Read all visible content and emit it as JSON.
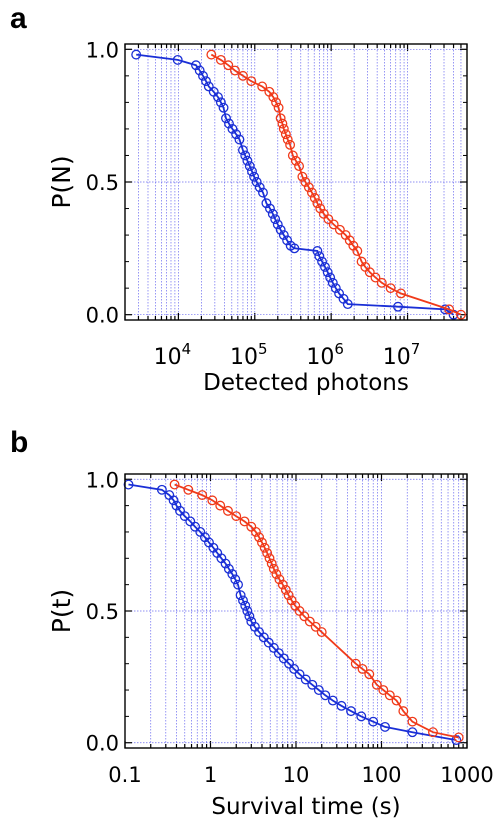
{
  "panels": [
    {
      "letter": "a"
    },
    {
      "letter": "b"
    }
  ],
  "chart_data": [
    {
      "type": "line",
      "xscale": "log",
      "xlabel": "Detected photons",
      "ylabel": "P(N)",
      "xlim": [
        2000,
        60000000
      ],
      "ylim": [
        -0.02,
        1.02
      ],
      "grid": true,
      "x_tick_labels": [
        {
          "value": 10000,
          "base": "10",
          "exp": "4"
        },
        {
          "value": 100000,
          "base": "10",
          "exp": "5"
        },
        {
          "value": 1000000,
          "base": "10",
          "exp": "6"
        },
        {
          "value": 10000000,
          "base": "10",
          "exp": "7"
        }
      ],
      "y_ticks": [
        {
          "value": 0.0,
          "label": "0.0"
        },
        {
          "value": 0.5,
          "label": "0.5"
        },
        {
          "value": 1.0,
          "label": "1.0"
        }
      ],
      "series": [
        {
          "color": "#1a2fd6",
          "x": [
            2800,
            9800,
            17000,
            19000,
            21000,
            23000,
            25000,
            29000,
            33000,
            36000,
            39000,
            42000,
            46000,
            51000,
            57000,
            63000,
            70000,
            75000,
            80000,
            86000,
            92000,
            98000,
            106000,
            116000,
            128000,
            142000,
            158000,
            172000,
            185000,
            200000,
            218000,
            240000,
            265000,
            295000,
            330000,
            660000,
            700000,
            760000,
            830000,
            900000,
            970000,
            1050000,
            1150000,
            1270000,
            1450000,
            1650000,
            7500000,
            31000000,
            40000000
          ],
          "y": [
            0.98,
            0.96,
            0.94,
            0.92,
            0.9,
            0.88,
            0.86,
            0.84,
            0.82,
            0.8,
            0.78,
            0.74,
            0.72,
            0.7,
            0.68,
            0.66,
            0.62,
            0.6,
            0.58,
            0.56,
            0.54,
            0.52,
            0.5,
            0.48,
            0.46,
            0.42,
            0.4,
            0.38,
            0.36,
            0.34,
            0.32,
            0.3,
            0.28,
            0.26,
            0.25,
            0.24,
            0.22,
            0.2,
            0.18,
            0.16,
            0.14,
            0.12,
            0.1,
            0.08,
            0.06,
            0.04,
            0.03,
            0.02,
            0.0
          ]
        },
        {
          "color": "#f03a1a",
          "x": [
            27000,
            36000,
            45000,
            55000,
            70000,
            90000,
            125000,
            155000,
            175000,
            190000,
            205000,
            218000,
            230000,
            240000,
            255000,
            270000,
            290000,
            315000,
            345000,
            380000,
            420000,
            460000,
            510000,
            560000,
            610000,
            660000,
            720000,
            800000,
            920000,
            1080000,
            1300000,
            1550000,
            1750000,
            1950000,
            2200000,
            2500000,
            2800000,
            3200000,
            3800000,
            4600000,
            6000000,
            8200000,
            35000000,
            50000000
          ],
          "y": [
            0.98,
            0.96,
            0.94,
            0.92,
            0.9,
            0.88,
            0.86,
            0.84,
            0.82,
            0.8,
            0.78,
            0.74,
            0.72,
            0.7,
            0.68,
            0.66,
            0.64,
            0.6,
            0.58,
            0.56,
            0.52,
            0.5,
            0.48,
            0.46,
            0.44,
            0.42,
            0.4,
            0.38,
            0.36,
            0.34,
            0.32,
            0.3,
            0.28,
            0.26,
            0.24,
            0.2,
            0.18,
            0.16,
            0.14,
            0.12,
            0.1,
            0.08,
            0.02,
            0.0
          ]
        }
      ]
    },
    {
      "type": "line",
      "xscale": "log",
      "xlabel": "Survival time (s)",
      "ylabel": "P(t)",
      "xlim": [
        0.1,
        1000
      ],
      "ylim": [
        -0.02,
        1.02
      ],
      "grid": true,
      "x_tick_labels": [
        {
          "value": 0.1,
          "label": "0.1"
        },
        {
          "value": 1,
          "label": "1"
        },
        {
          "value": 10,
          "label": "10"
        },
        {
          "value": 100,
          "label": "100"
        },
        {
          "value": 1000,
          "label": "1000"
        }
      ],
      "y_ticks": [
        {
          "value": 0.0,
          "label": "0.0"
        },
        {
          "value": 0.5,
          "label": "0.5"
        },
        {
          "value": 1.0,
          "label": "1.0"
        }
      ],
      "series": [
        {
          "color": "#1a2fd6",
          "x": [
            0.11,
            0.27,
            0.33,
            0.37,
            0.4,
            0.44,
            0.5,
            0.58,
            0.66,
            0.76,
            0.86,
            0.96,
            1.08,
            1.2,
            1.34,
            1.5,
            1.64,
            1.8,
            1.95,
            2.1,
            2.25,
            2.4,
            2.55,
            2.7,
            2.85,
            3.0,
            3.3,
            3.7,
            4.2,
            4.8,
            5.5,
            6.3,
            7.2,
            8.3,
            9.5,
            11.0,
            13.0,
            15.5,
            18.5,
            22.0,
            27.0,
            34.0,
            44.0,
            58.0,
            80.0,
            110.0,
            230.0,
            750.0
          ],
          "y": [
            0.98,
            0.96,
            0.94,
            0.92,
            0.9,
            0.88,
            0.86,
            0.84,
            0.82,
            0.8,
            0.78,
            0.76,
            0.74,
            0.72,
            0.7,
            0.68,
            0.66,
            0.64,
            0.62,
            0.6,
            0.56,
            0.54,
            0.52,
            0.5,
            0.48,
            0.46,
            0.44,
            0.42,
            0.4,
            0.38,
            0.36,
            0.34,
            0.32,
            0.3,
            0.28,
            0.26,
            0.24,
            0.22,
            0.2,
            0.18,
            0.16,
            0.14,
            0.12,
            0.1,
            0.08,
            0.06,
            0.04,
            0.01
          ]
        },
        {
          "color": "#f03a1a",
          "x": [
            0.38,
            0.55,
            0.8,
            1.05,
            1.3,
            1.6,
            2.0,
            2.5,
            3.0,
            3.4,
            3.7,
            4.0,
            4.3,
            4.6,
            4.9,
            5.2,
            5.5,
            5.9,
            6.4,
            7.0,
            7.6,
            8.2,
            8.9,
            9.8,
            11.0,
            12.5,
            14.5,
            17.0,
            20.0,
            50.0,
            60.0,
            72.0,
            88.0,
            105.0,
            125.0,
            150.0,
            180.0,
            230.0,
            400.0,
            800.0
          ],
          "y": [
            0.98,
            0.96,
            0.94,
            0.92,
            0.9,
            0.88,
            0.86,
            0.84,
            0.82,
            0.8,
            0.78,
            0.76,
            0.74,
            0.72,
            0.7,
            0.68,
            0.66,
            0.64,
            0.62,
            0.6,
            0.58,
            0.56,
            0.54,
            0.52,
            0.5,
            0.48,
            0.46,
            0.44,
            0.42,
            0.3,
            0.28,
            0.26,
            0.22,
            0.2,
            0.18,
            0.16,
            0.12,
            0.08,
            0.04,
            0.02
          ]
        }
      ]
    }
  ]
}
